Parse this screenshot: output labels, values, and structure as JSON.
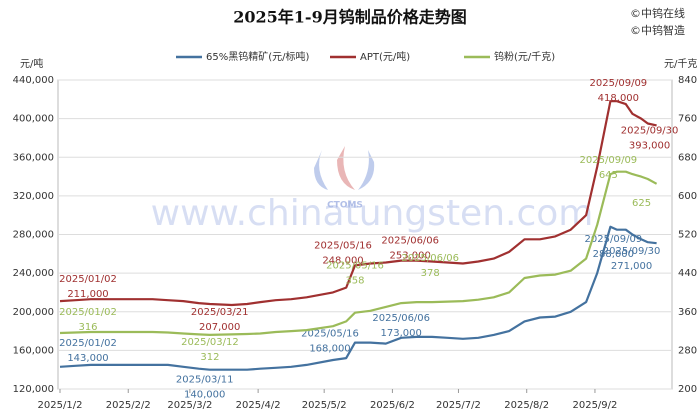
{
  "chart_data": {
    "type": "line",
    "title": "2025年1-9月钨制品价格走势图",
    "copyright": [
      "©中钨在线",
      "©中钨智造"
    ],
    "watermark": "www.chinatungsten.com",
    "watermark_logo": "CTOMS",
    "y_label": "元/吨",
    "y2_label": "元/千克",
    "grid": true,
    "xlim": [
      "2025/1/2",
      "2025/10/7"
    ],
    "xticks": [
      "2025/1/2",
      "2025/2/2",
      "2025/3/2",
      "2025/4/2",
      "2025/5/2",
      "2025/6/2",
      "2025/7/2",
      "2025/8/2",
      "2025/9/2"
    ],
    "ylim": [
      120000,
      440000
    ],
    "yticks": [
      {
        "value": 120000,
        "label": "120,000"
      },
      {
        "value": 160000,
        "label": "160,000"
      },
      {
        "value": 200000,
        "label": "200,000"
      },
      {
        "value": 240000,
        "label": "240,000"
      },
      {
        "value": 280000,
        "label": "280,000"
      },
      {
        "value": 320000,
        "label": "320,000"
      },
      {
        "value": 360000,
        "label": "360,000"
      },
      {
        "value": 400000,
        "label": "400,000"
      },
      {
        "value": 440000,
        "label": "440,000"
      }
    ],
    "y2lim": [
      200,
      840
    ],
    "y2ticks": [
      200,
      280,
      360,
      440,
      520,
      600,
      680,
      760,
      840
    ],
    "x": [
      "2025/1/2",
      "2025/1/9",
      "2025/1/16",
      "2025/1/23",
      "2025/2/6",
      "2025/2/13",
      "2025/2/20",
      "2025/2/27",
      "2025/3/6",
      "2025/3/11",
      "2025/3/21",
      "2025/3/28",
      "2025/4/3",
      "2025/4/10",
      "2025/4/17",
      "2025/4/24",
      "2025/5/6",
      "2025/5/12",
      "2025/5/16",
      "2025/5/23",
      "2025/5/30",
      "2025/6/6",
      "2025/6/13",
      "2025/6/20",
      "2025/6/27",
      "2025/7/4",
      "2025/7/11",
      "2025/7/18",
      "2025/7/25",
      "2025/8/1",
      "2025/8/8",
      "2025/8/15",
      "2025/8/22",
      "2025/8/29",
      "2025/9/3",
      "2025/9/9",
      "2025/9/12",
      "2025/9/16",
      "2025/9/19",
      "2025/9/23",
      "2025/9/26",
      "2025/9/30"
    ],
    "series": [
      {
        "name": "65%黑钨精矿(元/标吨)",
        "color": "#44729f",
        "values": [
          143000,
          144000,
          145000,
          145000,
          145000,
          145000,
          145000,
          143000,
          141000,
          140000,
          140000,
          140000,
          141000,
          142000,
          143000,
          145000,
          150000,
          152000,
          168000,
          168000,
          167000,
          173000,
          174000,
          174000,
          173000,
          172000,
          173000,
          176000,
          180000,
          190000,
          194000,
          195000,
          200000,
          210000,
          240000,
          288000,
          285000,
          285000,
          280000,
          275000,
          272000,
          271000
        ],
        "annotations": [
          {
            "x": "2025/01/02",
            "value": 143000,
            "label": "143,000"
          },
          {
            "x": "2025/03/11",
            "value": 140000,
            "label": "140,000"
          },
          {
            "x": "2025/05/16",
            "value": 168000,
            "label": "168,000"
          },
          {
            "x": "2025/06/06",
            "value": 173000,
            "label": "173,000"
          },
          {
            "x": "2025/09/09",
            "value": 288000,
            "label": "288,000"
          },
          {
            "x": "2025/09/30",
            "value": 271000,
            "label": "271,000"
          }
        ]
      },
      {
        "name": "APT(元/吨)",
        "color": "#a03030",
        "values": [
          211000,
          212000,
          213000,
          213000,
          213000,
          213000,
          212000,
          211000,
          209000,
          208000,
          207000,
          208000,
          210000,
          212000,
          213000,
          215000,
          220000,
          225000,
          248000,
          250000,
          251000,
          253000,
          253000,
          252000,
          251000,
          250000,
          252000,
          255000,
          262000,
          275000,
          275000,
          278000,
          285000,
          300000,
          350000,
          418000,
          418000,
          415000,
          405000,
          400000,
          395000,
          393000
        ],
        "annotations": [
          {
            "x": "2025/01/02",
            "value": 211000,
            "label": "211,000"
          },
          {
            "x": "2025/03/21",
            "value": 207000,
            "label": "207,000"
          },
          {
            "x": "2025/05/16",
            "value": 248000,
            "label": "248,000"
          },
          {
            "x": "2025/06/06",
            "value": 253000,
            "label": "253,000"
          },
          {
            "x": "2025/09/09",
            "value": 418000,
            "label": "418,000"
          },
          {
            "x": "2025/09/30",
            "value": 393000,
            "label": "393,000"
          }
        ]
      },
      {
        "name": "钨粉(元/千克)",
        "color": "#9bbb59",
        "axis": "y2",
        "values": [
          316,
          317,
          318,
          318,
          318,
          318,
          317,
          315,
          313,
          312,
          313,
          314,
          315,
          318,
          320,
          322,
          330,
          340,
          358,
          362,
          370,
          378,
          380,
          380,
          381,
          382,
          385,
          390,
          400,
          430,
          435,
          437,
          445,
          470,
          540,
          645,
          650,
          650,
          645,
          640,
          635,
          625
        ],
        "annotations": [
          {
            "x": "2025/01/02",
            "value": 316,
            "label": "316"
          },
          {
            "x": "2025/03/12",
            "value": 312,
            "label": "312"
          },
          {
            "x": "2025/05/16",
            "value": 358,
            "label": "358"
          },
          {
            "x": "2025/06/06",
            "value": 378,
            "label": "378"
          },
          {
            "x": "2025/09/09",
            "value": 645,
            "label": "645"
          },
          {
            "value": 625,
            "label": "625"
          }
        ]
      }
    ]
  }
}
